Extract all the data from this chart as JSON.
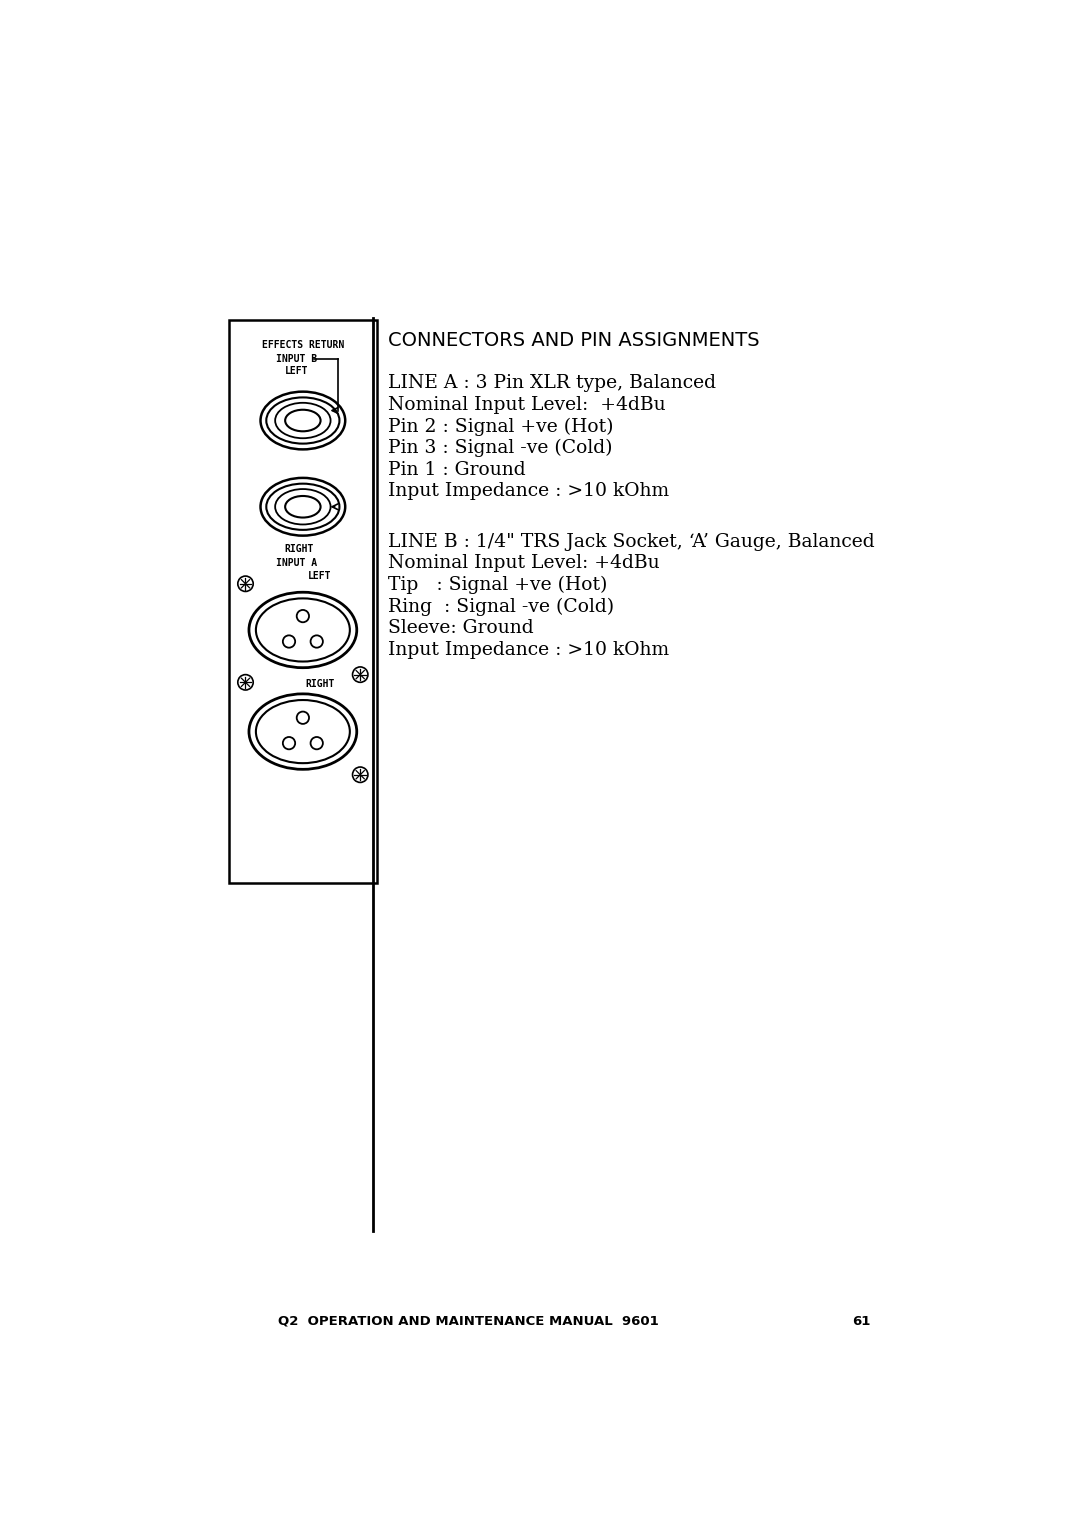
{
  "bg_color": "#ffffff",
  "page_width": 10.8,
  "page_height": 15.28,
  "footer_text": "Q2  OPERATION AND MAINTENANCE MANUAL  9601",
  "footer_page": "61",
  "section_title": "CONNECTORS AND PIN ASSIGNMENTS",
  "line_a_text": [
    "LINE A : 3 Pin XLR type, Balanced",
    "Nominal Input Level:  +4dBu",
    "Pin 2 : Signal +ve (Hot)",
    "Pin 3 : Signal -ve (Cold)",
    "Pin 1 : Ground",
    "Input Impedance : >10 kOhm"
  ],
  "line_b_text": [
    "LINE B : 1/4\" TRS Jack Socket, ‘A’ Gauge, Balanced",
    "Nominal Input Level: +4dBu",
    "Tip   : Signal +ve (Hot)",
    "Ring  : Signal -ve (Cold)",
    "Sleeve: Ground",
    "Input Impedance : >10 kOhm"
  ],
  "label_effects_return": "EFFECTS RETURN",
  "label_input_b": "INPUT B",
  "label_left1": "LEFT",
  "label_right1": "RIGHT",
  "label_input_a": "INPUT A",
  "label_left2": "LEFT",
  "label_right2": "RIGHT",
  "panel_color": "#ffffff",
  "panel_border_color": "#000000",
  "connector_color": "#000000",
  "text_color": "#000000",
  "divider_color": "#000000"
}
